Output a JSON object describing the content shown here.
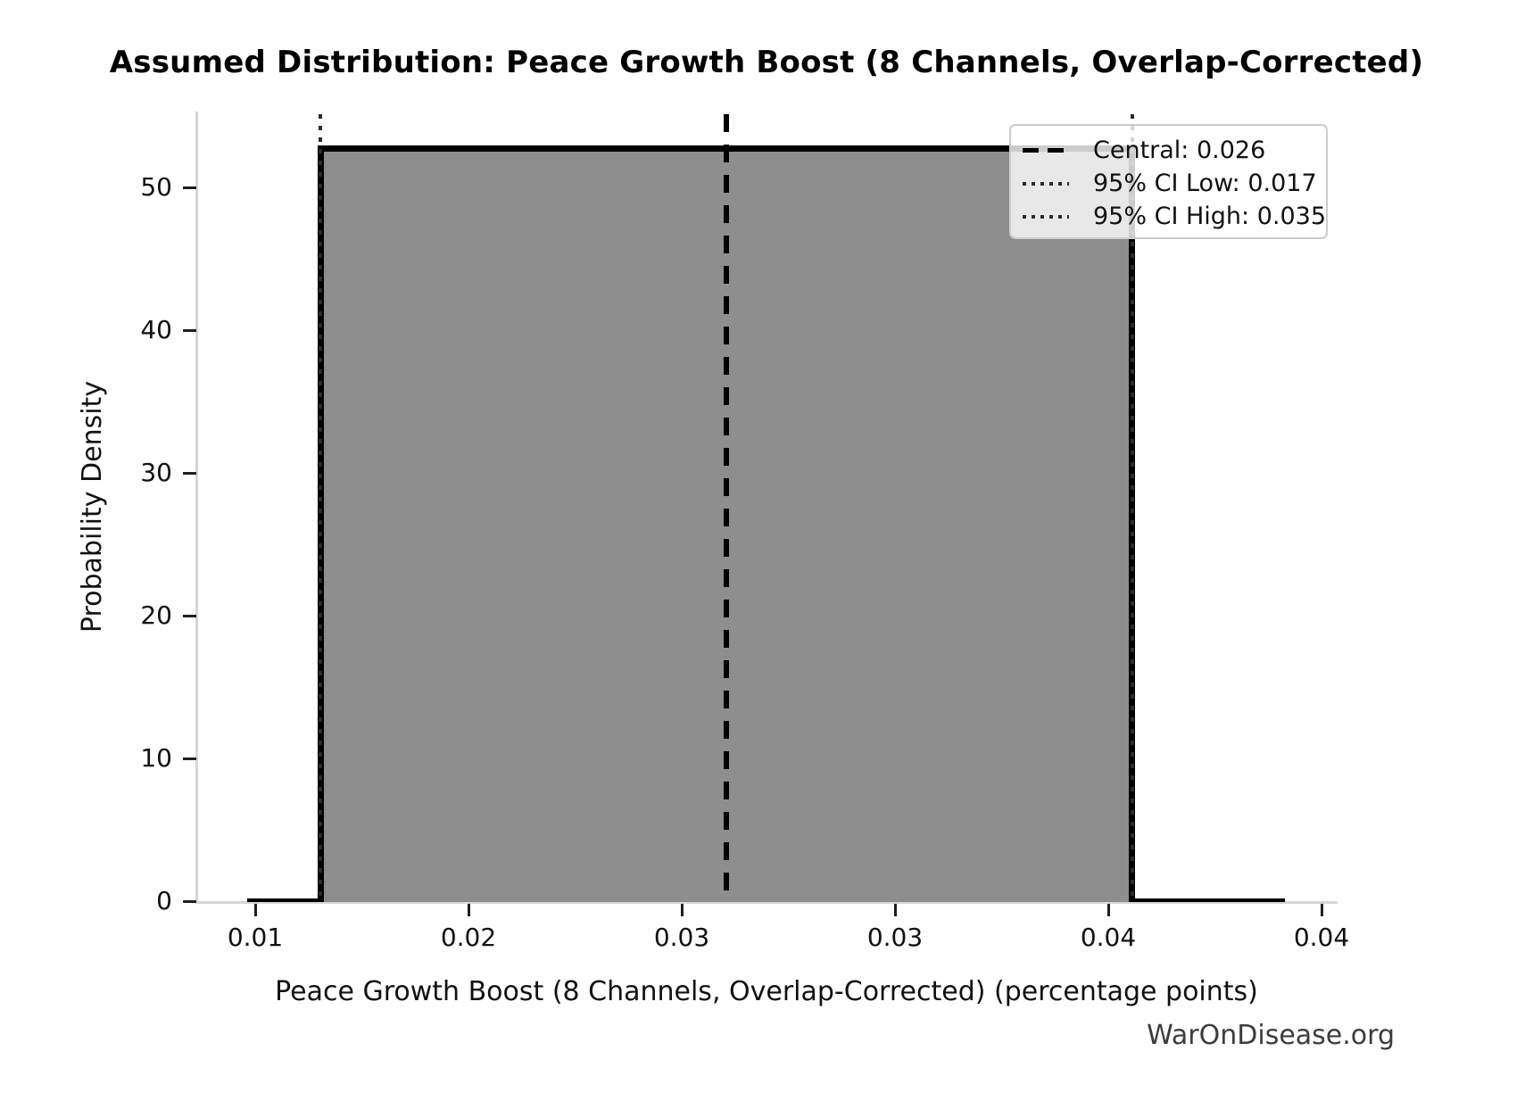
{
  "title": "Assumed Distribution: Peace Growth Boost (8 Channels, Overlap-Corrected)",
  "watermark": "WarOnDisease.org",
  "chart_data": {
    "type": "area",
    "distribution": "uniform",
    "title": "Assumed Distribution: Peace Growth Boost (8 Channels, Overlap-Corrected)",
    "xlabel": "Peace Growth Boost (8 Channels, Overlap-Corrected) (percentage points)",
    "ylabel": "Probability Density",
    "central": 0.026,
    "ci_low": 0.017,
    "ci_high": 0.035,
    "density_height": 52.7,
    "curve": {
      "x_start": 0.01538,
      "x_end": 0.03838,
      "baseline_value": 0
    },
    "x_tick_labels": [
      "0.01",
      "0.02",
      "0.03",
      "0.03",
      "0.04",
      "0.04"
    ],
    "y_tick_values": [
      0,
      10,
      20,
      30,
      40,
      50
    ],
    "y_tick_labels": [
      "0",
      "10",
      "20",
      "30",
      "40",
      "50"
    ],
    "ylim": [
      0,
      55.3
    ],
    "grid": false,
    "fill_color": "#8e8e8e",
    "line_color": "#000000",
    "legend": {
      "position": "upper right",
      "items": [
        {
          "label": "Central: 0.026",
          "style": "dashed"
        },
        {
          "label": "95% CI Low: 0.017",
          "style": "dotted"
        },
        {
          "label": "95% CI High: 0.035",
          "style": "dotted"
        }
      ]
    }
  }
}
